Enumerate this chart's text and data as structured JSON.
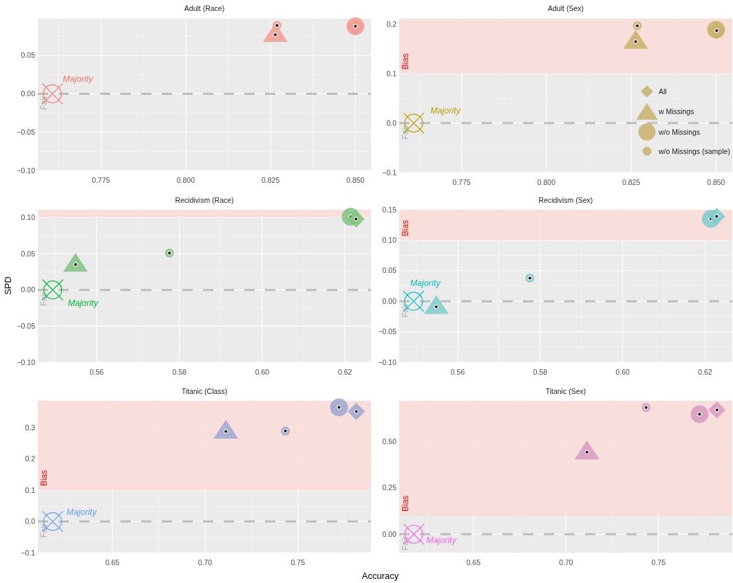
{
  "chart_data": [
    {
      "type": "scatter",
      "title": "Adult (Race)",
      "xlim": [
        0.7564,
        0.8546
      ],
      "xticks": [
        0.775,
        {
          "value": 0.8,
          "label": "0.800"
        },
        0.825,
        {
          "value": 0.85,
          "label": "0.850"
        }
      ],
      "ylim": [
        -0.1,
        0.098
      ],
      "yticks": [
        {
          "value": -0.1,
          "label": "−0.10"
        },
        {
          "value": -0.05,
          "label": "−0.05"
        },
        {
          "value": 0,
          "label": "0.00"
        },
        0.05
      ],
      "grid": true,
      "ref_lines": [
        {
          "axis": "y",
          "value": 0,
          "label": "Fair",
          "color": "#bdbdbd",
          "line_style": "dashed"
        }
      ],
      "series": [
        {
          "marker": "triangle",
          "color": "#f29c92",
          "x": [
            0.8264
          ],
          "values": [
            0.077
          ]
        },
        {
          "marker": "circle",
          "color": "#f29c92",
          "x": [
            0.85
          ],
          "values": [
            0.088
          ]
        },
        {
          "marker": "circle",
          "color": "#f29c92",
          "x": [
            0.8269
          ],
          "values": [
            0.089
          ]
        },
        {
          "marker": "diamond",
          "color": "#f29c92",
          "x": [
            0.85
          ],
          "values": [
            0.088
          ]
        },
        {
          "name": "Majority",
          "color": "#f8766d",
          "x": [
            0.7607
          ],
          "values": [
            0
          ]
        }
      ]
    },
    {
      "type": "scatter",
      "title": "Adult (Sex)",
      "xlim": [
        0.7566,
        0.8548
      ],
      "xticks": [
        0.775,
        {
          "value": 0.8,
          "label": "0.800"
        },
        0.825,
        {
          "value": 0.85,
          "label": "0.850"
        }
      ],
      "ylim": [
        -0.1,
        0.2115
      ],
      "yticks": [
        {
          "value": -0.1,
          "label": "−0.1"
        },
        {
          "value": 0,
          "label": "0.0"
        },
        0.1,
        0.2
      ],
      "grid": true,
      "legend": "bottom right",
      "ref_lines": [
        {
          "axis": "y",
          "value": 0,
          "label": "Fair",
          "color": "#bdbdbd",
          "line_style": "dashed"
        }
      ],
      "bands": [
        {
          "axis": "y",
          "from": 0.1,
          "to": 0.2115,
          "label": "Bias",
          "color": "#fcdcd8"
        }
      ],
      "series": [
        {
          "name": "w Missings",
          "marker": "triangle",
          "color": "#c9b16c",
          "x": [
            0.8263
          ],
          "values": [
            0.165
          ]
        },
        {
          "name": "w/o Missings",
          "marker": "circle",
          "color": "#c9b16c",
          "x": [
            0.85
          ],
          "values": [
            0.189
          ]
        },
        {
          "name": "w/o Missings (sample)",
          "marker": "circle",
          "color": "#c9b16c",
          "x": [
            0.8268
          ],
          "values": [
            0.197
          ]
        },
        {
          "name": "All",
          "marker": "diamond",
          "color": "#c9b16c",
          "x": [
            0.8502
          ],
          "values": [
            0.187
          ]
        },
        {
          "name": "Majority",
          "color": "#b79f00",
          "x": [
            0.7609
          ],
          "values": [
            0
          ]
        }
      ]
    },
    {
      "type": "scatter",
      "title": "Recidivism (Race)",
      "ylabel": "SPD",
      "xlim": [
        0.5458,
        0.6263
      ],
      "xticks": [
        0.56,
        0.58,
        {
          "value": 0.6,
          "label": "0.60"
        },
        0.62
      ],
      "ylim": [
        -0.1,
        0.1108
      ],
      "yticks": [
        {
          "value": -0.1,
          "label": "−0.10"
        },
        {
          "value": -0.05,
          "label": "−0.05"
        },
        {
          "value": 0,
          "label": "0.00"
        },
        0.05,
        {
          "value": 0.1,
          "label": "0.10"
        }
      ],
      "grid": true,
      "ref_lines": [
        {
          "axis": "y",
          "value": 0,
          "label": "Fair",
          "color": "#bdbdbd",
          "line_style": "dashed"
        }
      ],
      "bands": [
        {
          "axis": "y",
          "from": 0.1,
          "to": 0.1108,
          "color": "#fcdcd8"
        }
      ],
      "series": [
        {
          "marker": "triangle",
          "color": "#80c480",
          "x": [
            0.5549
          ],
          "values": [
            0.035
          ]
        },
        {
          "marker": "circle",
          "color": "#80c480",
          "x": [
            0.6214
          ],
          "values": [
            0.101
          ]
        },
        {
          "marker": "circle",
          "color": "#80c480",
          "x": [
            0.5776
          ],
          "values": [
            0.051
          ]
        },
        {
          "marker": "diamond",
          "color": "#80c480",
          "x": [
            0.6227
          ],
          "values": [
            0.098
          ]
        },
        {
          "name": "Majority",
          "color": "#00ba38",
          "x": [
            0.5494
          ],
          "values": [
            0
          ]
        }
      ]
    },
    {
      "type": "scatter",
      "title": "Recidivism (Sex)",
      "xlim": [
        0.5458,
        0.6266
      ],
      "xticks": [
        0.56,
        0.58,
        {
          "value": 0.6,
          "label": "0.60"
        },
        0.62
      ],
      "ylim": [
        -0.1,
        0.15
      ],
      "yticks": [
        {
          "value": -0.1,
          "label": "−0.10"
        },
        {
          "value": -0.05,
          "label": "−0.05"
        },
        {
          "value": 0,
          "label": "0.00"
        },
        0.05,
        {
          "value": 0.1,
          "label": "0.10"
        },
        0.15
      ],
      "grid": true,
      "ref_lines": [
        {
          "axis": "y",
          "value": 0,
          "label": "Fair",
          "color": "#bdbdbd",
          "line_style": "dashed"
        }
      ],
      "bands": [
        {
          "axis": "y",
          "from": 0.1,
          "to": 0.15,
          "label": "Bias",
          "color": "#fcdcd8"
        }
      ],
      "series": [
        {
          "marker": "triangle",
          "color": "#80cbcb",
          "x": [
            0.5548
          ],
          "values": [
            -0.009
          ]
        },
        {
          "marker": "circle",
          "color": "#80cbcb",
          "x": [
            0.6214
          ],
          "values": [
            0.135
          ]
        },
        {
          "marker": "circle",
          "color": "#80cbcb",
          "x": [
            0.5775
          ],
          "values": [
            0.038
          ]
        },
        {
          "marker": "diamond",
          "color": "#80cbcb",
          "x": [
            0.6228
          ],
          "values": [
            0.139
          ]
        },
        {
          "name": "Majority",
          "color": "#00bfc4",
          "x": [
            0.5493
          ],
          "values": [
            0
          ]
        }
      ]
    },
    {
      "type": "scatter",
      "title": "Titanic (Class)",
      "xlabel": "Accuracy",
      "xlim": [
        0.6099,
        0.7894
      ],
      "xticks": [
        0.65,
        {
          "value": 0.7,
          "label": "0.70"
        },
        0.75
      ],
      "ylim": [
        -0.1,
        0.386
      ],
      "yticks": [
        {
          "value": -0.1,
          "label": "−0.1"
        },
        {
          "value": 0,
          "label": "0.0"
        },
        0.1,
        0.2,
        0.3
      ],
      "grid": true,
      "ref_lines": [
        {
          "axis": "y",
          "value": 0,
          "label": "Fair",
          "color": "#bdbdbd",
          "line_style": "dashed"
        }
      ],
      "bands": [
        {
          "axis": "y",
          "from": 0.1,
          "to": 0.386,
          "label": "Bias",
          "color": "#fcdcd8"
        }
      ],
      "series": [
        {
          "marker": "triangle",
          "color": "#9ca8cf",
          "x": [
            0.7112
          ],
          "values": [
            0.288
          ]
        },
        {
          "marker": "circle",
          "color": "#9ca8cf",
          "x": [
            0.7722
          ],
          "values": [
            0.365
          ]
        },
        {
          "marker": "circle",
          "color": "#9ca8cf",
          "x": [
            0.7433
          ],
          "values": [
            0.289
          ]
        },
        {
          "marker": "diamond",
          "color": "#9ca8cf",
          "x": [
            0.7815
          ],
          "values": [
            0.352
          ]
        },
        {
          "name": "Majority",
          "color": "#619cff",
          "x": [
            0.6179
          ],
          "values": [
            0
          ]
        }
      ]
    },
    {
      "type": "scatter",
      "title": "Titanic (Sex)",
      "xlim": [
        0.6098,
        0.7899
      ],
      "xticks": [
        0.65,
        {
          "value": 0.7,
          "label": "0.70"
        },
        0.75
      ],
      "ylim": [
        -0.1,
        0.719
      ],
      "yticks": [
        {
          "value": 0,
          "label": "0.00"
        },
        0.25,
        {
          "value": 0.5,
          "label": "0.50"
        }
      ],
      "grid": true,
      "ref_lines": [
        {
          "axis": "y",
          "value": 0,
          "label": "Fair",
          "color": "#bdbdbd",
          "line_style": "dashed"
        }
      ],
      "bands": [
        {
          "axis": "y",
          "from": 0.1,
          "to": 0.719,
          "label": "Bias",
          "color": "#fcdcd8"
        }
      ],
      "series": [
        {
          "marker": "triangle",
          "color": "#d99ac1",
          "x": [
            0.7113
          ],
          "values": [
            0.442
          ]
        },
        {
          "marker": "circle",
          "color": "#d99ac1",
          "x": [
            0.7722
          ],
          "values": [
            0.647
          ]
        },
        {
          "marker": "circle",
          "color": "#d99ac1",
          "x": [
            0.7433
          ],
          "values": [
            0.683
          ]
        },
        {
          "marker": "diamond",
          "color": "#d99ac1",
          "x": [
            0.7816
          ],
          "values": [
            0.67
          ]
        },
        {
          "name": "Majority",
          "color": "#f564e3",
          "x": [
            0.6177
          ],
          "values": [
            0
          ]
        }
      ]
    }
  ]
}
